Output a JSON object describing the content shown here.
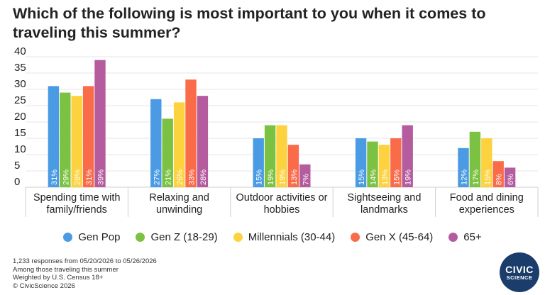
{
  "title": "Which of the following is most important to you when it comes to traveling this summer?",
  "chart_data": {
    "type": "bar",
    "categories": [
      [
        "Spending time with",
        "family/friends"
      ],
      [
        "Relaxing and",
        "unwinding"
      ],
      [
        "Outdoor activities or",
        "hobbies"
      ],
      [
        "Sightseeing and",
        "landmarks"
      ],
      [
        "Food and dining",
        "experiences"
      ]
    ],
    "series": [
      {
        "name": "Gen Pop",
        "color": "#4a9be4",
        "values": [
          31,
          27,
          15,
          15,
          12
        ]
      },
      {
        "name": "Gen Z (18-29)",
        "color": "#7cc242",
        "values": [
          29,
          21,
          19,
          14,
          17
        ]
      },
      {
        "name": "Millennials (30-44)",
        "color": "#fdd23f",
        "values": [
          28,
          26,
          19,
          13,
          15
        ]
      },
      {
        "name": "Gen X (45-64)",
        "color": "#fa6b4a",
        "values": [
          31,
          33,
          13,
          15,
          8
        ]
      },
      {
        "name": "65+",
        "color": "#b45c9e",
        "values": [
          39,
          28,
          7,
          19,
          6
        ]
      }
    ],
    "yticks": [
      0,
      5,
      10,
      15,
      20,
      25,
      30,
      35,
      40
    ],
    "ylim": [
      0,
      40
    ],
    "value_suffix": "%",
    "grid": true,
    "legend_position": "bottom"
  },
  "footnotes": [
    "1,233 responses from 05/20/2026 to 05/26/2026",
    "Among those traveling this summer",
    "Weighted by U.S. Census 18+",
    "© CivicScience 2026"
  ],
  "logo": {
    "line1": "CIVIC",
    "line2": "SCIENCE",
    "color": "#1b3d6b"
  }
}
